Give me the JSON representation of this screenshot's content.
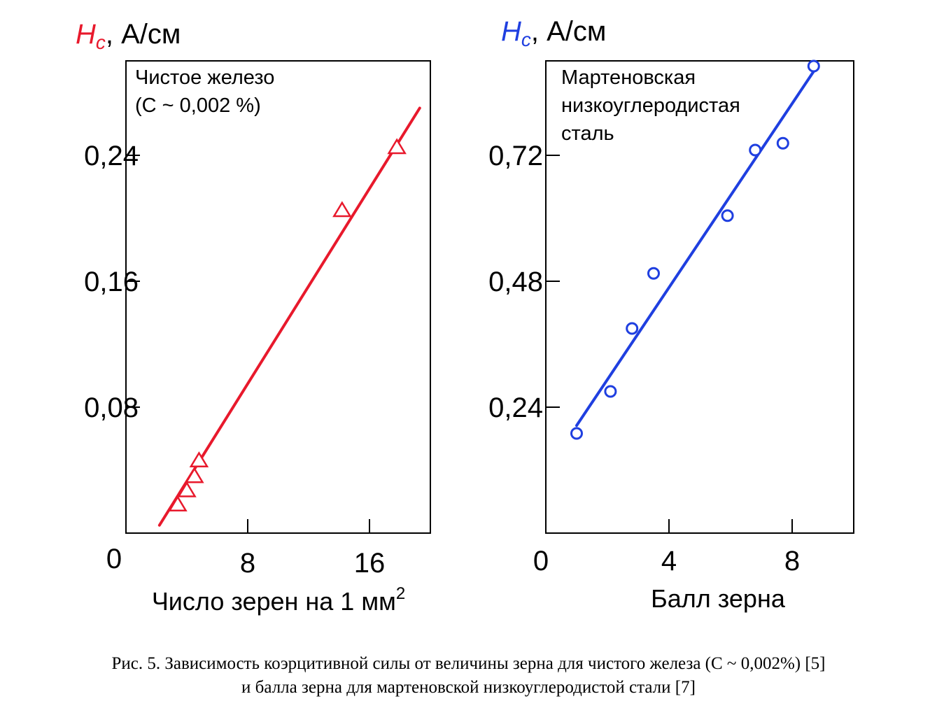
{
  "chart_data": [
    {
      "type": "scatter",
      "y_symbol": "H",
      "y_subscript": "c",
      "y_unit": ", А/см",
      "accent_color": "#e8192c",
      "xlabel": "Число зерен на 1 мм",
      "xlabel_superscript": "2",
      "annotation": [
        "Чистое железо",
        "(С ~ 0,002 %)"
      ],
      "xlim": [
        0,
        20
      ],
      "ylim": [
        0,
        0.3
      ],
      "xticks": [
        8,
        16
      ],
      "xtick_labels": [
        "8",
        "16"
      ],
      "yticks": [
        0.08,
        0.16,
        0.24
      ],
      "ytick_labels": [
        "0,08",
        "0,16",
        "0,24"
      ],
      "origin_label": "0",
      "marker": "triangle",
      "series": [
        {
          "x": [
            3.4,
            4.0,
            4.5,
            4.8,
            14.2,
            17.8
          ],
          "y": [
            0.018,
            0.027,
            0.036,
            0.046,
            0.205,
            0.245
          ]
        }
      ],
      "fit_line": {
        "x": [
          2.2,
          19.3
        ],
        "y": [
          0.005,
          0.27
        ]
      }
    },
    {
      "type": "scatter",
      "y_symbol": "H",
      "y_subscript": "c",
      "y_unit": ", А/см",
      "accent_color": "#1f3fe0",
      "xlabel": "Балл зерна",
      "annotation": [
        "Мартеновская",
        "низкоуглеродистая",
        "сталь"
      ],
      "xlim": [
        0,
        10
      ],
      "ylim": [
        0,
        0.9
      ],
      "xticks": [
        4,
        8
      ],
      "xtick_labels": [
        "4",
        "8"
      ],
      "yticks": [
        0.24,
        0.48,
        0.72
      ],
      "ytick_labels": [
        "0,24",
        "0,48",
        "0,72"
      ],
      "origin_label": "0",
      "marker": "circle",
      "series": [
        {
          "x": [
            1.0,
            2.1,
            2.8,
            3.5,
            5.9,
            6.8,
            7.7,
            8.7
          ],
          "y": [
            0.19,
            0.27,
            0.39,
            0.495,
            0.605,
            0.73,
            0.743,
            0.89
          ]
        }
      ],
      "fit_line": {
        "x": [
          1.0,
          8.7
        ],
        "y": [
          0.205,
          0.88
        ]
      }
    }
  ],
  "caption": {
    "line1": "Рис. 5. Зависимость коэрцитивной силы от величины зерна для чистого железа (С ~ 0,002%) [5]",
    "line2": "и балла зерна для мартеновской низкоуглеродистой стали [7]"
  }
}
